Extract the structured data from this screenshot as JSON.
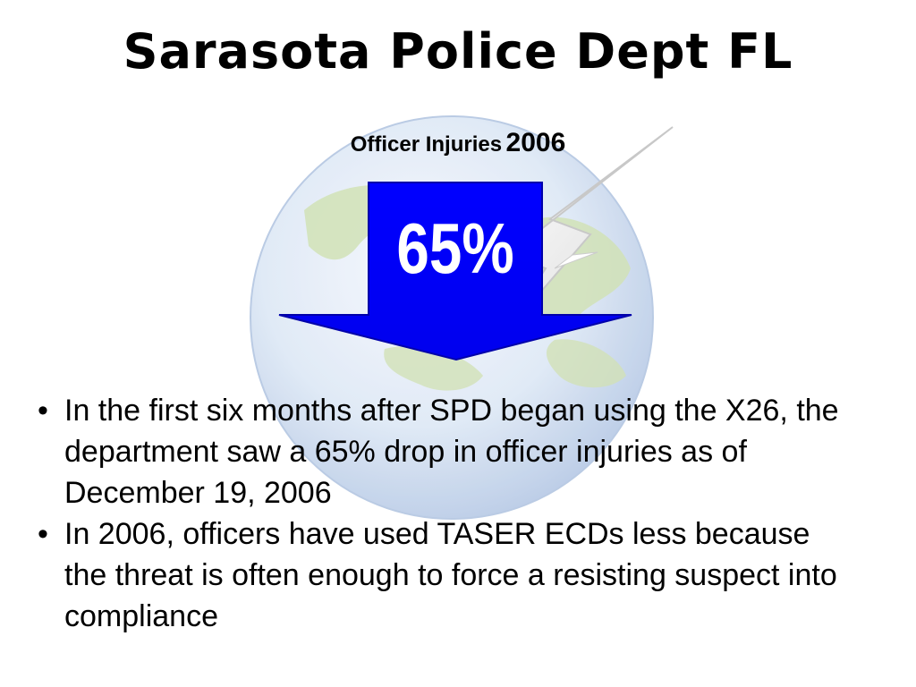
{
  "slide": {
    "title": "Sarasota Police Dept FL",
    "subtitle_main": "Officer Injuries",
    "subtitle_year": "2006",
    "stat": "65%",
    "bullet_symbol": "•",
    "bullets": [
      "In the first six months after SPD began using the X26, the department saw a 65% drop in officer injuries as of December 19, 2006",
      "In 2006, officers have used TASER ECDs less because the threat is often enough to force a resisting suspect into compliance"
    ]
  },
  "colors": {
    "arrow_fill": "#0000ff",
    "arrow_text": "#ffffff",
    "text": "#000000",
    "globe_ocean": "#dbe7f7",
    "globe_land": "#c6dca8"
  },
  "icons": {
    "background": "globe-lightning-icon",
    "arrow": "down-arrow-icon"
  }
}
